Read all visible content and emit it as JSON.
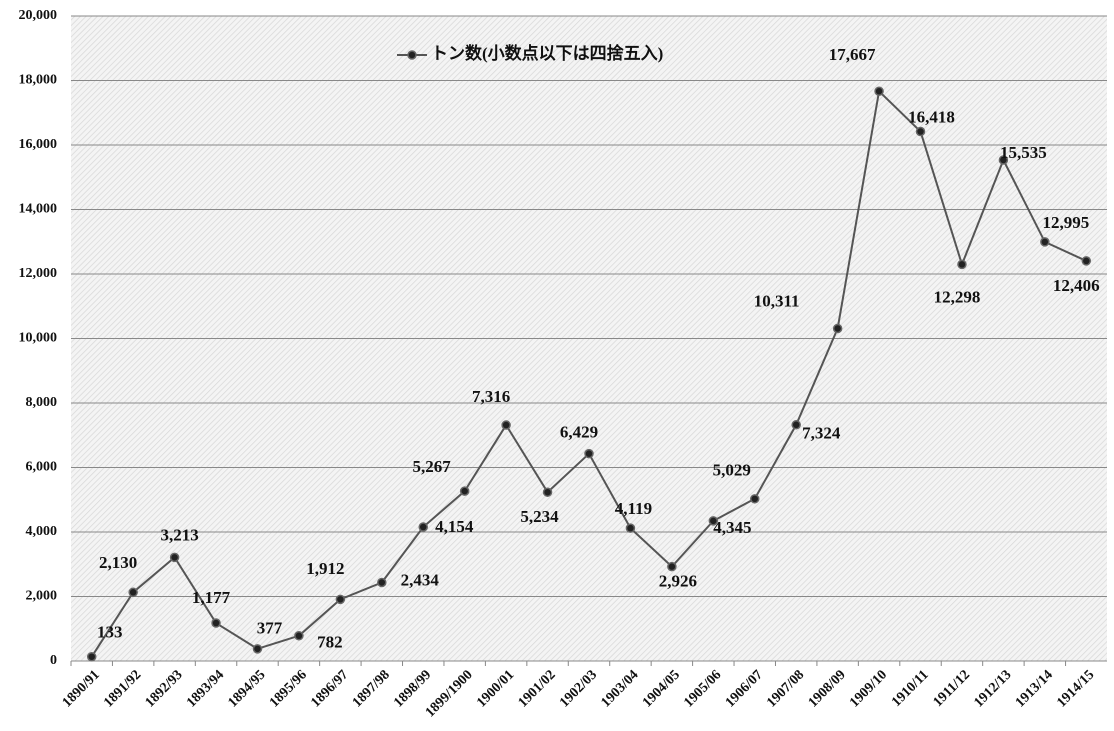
{
  "chart_data": {
    "type": "line",
    "categories": [
      "1890/91",
      "1891/92",
      "1892/93",
      "1893/94",
      "1894/95",
      "1895/96",
      "1896/97",
      "1897/98",
      "1898/99",
      "1899/1900",
      "1900/01",
      "1901/02",
      "1902/03",
      "1903/04",
      "1904/05",
      "1905/06",
      "1906/07",
      "1907/08",
      "1908/09",
      "1909/10",
      "1910/11",
      "1911/12",
      "1912/13",
      "1913/14",
      "1914/15"
    ],
    "series": [
      {
        "name": "トン数(小数点以下は四捨五入)",
        "color": "#555555",
        "values": [
          133,
          2130,
          3213,
          1177,
          377,
          782,
          1912,
          2434,
          4154,
          5267,
          7316,
          5234,
          6429,
          4119,
          2926,
          4345,
          5029,
          7324,
          10311,
          17667,
          16418,
          12298,
          15535,
          12995,
          12406
        ],
        "value_labels": [
          "133",
          "2,130",
          "3,213",
          "1,177",
          "377",
          "782",
          "1,912",
          "2,434",
          "4,154",
          "5,267",
          "7,316",
          "5,234",
          "6,429",
          "4,119",
          "2,926",
          "4,345",
          "5,029",
          "7,324",
          "10,311",
          "17,667",
          "16,418",
          "12,298",
          "15,535",
          "12,995",
          "12,406"
        ]
      }
    ],
    "ylim": [
      0,
      20000
    ],
    "yticks": [
      0,
      {
        "value": 2000,
        "label": "2,000"
      },
      {
        "value": 4000,
        "label": "4,000"
      },
      {
        "value": 6000,
        "label": "6,000"
      },
      {
        "value": 8000,
        "label": "8,000"
      },
      {
        "value": 10000,
        "label": "10,000"
      },
      {
        "value": 12000,
        "label": "12,000"
      },
      {
        "value": 14000,
        "label": "14,000"
      },
      {
        "value": 16000,
        "label": "16,000"
      },
      {
        "value": 18000,
        "label": "18,000"
      },
      {
        "value": 20000,
        "label": "20,000"
      }
    ],
    "grid": true,
    "legend": "top"
  }
}
